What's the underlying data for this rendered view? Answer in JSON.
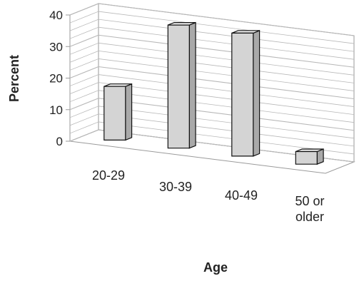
{
  "chart_data": {
    "type": "bar",
    "categories": [
      "20-29",
      "30-39",
      "40-49",
      "50 or older"
    ],
    "category_lines": [
      [
        "20-29"
      ],
      [
        "30-39"
      ],
      [
        "40-49"
      ],
      [
        "50 or",
        "older"
      ]
    ],
    "values": [
      17,
      39,
      39,
      4
    ],
    "xlabel": "Age",
    "ylabel": "Percent",
    "ylim": [
      0,
      40
    ],
    "yticks": [
      0,
      10,
      20,
      30,
      40
    ],
    "grid": true,
    "three_d": true,
    "colors": {
      "bar_front": "#d4d4d4",
      "bar_side": "#a9a9a9",
      "bar_top": "#ececec",
      "bar_outline": "#111111",
      "grid": "#b8b8b8",
      "axis": "#9a9a9a"
    }
  }
}
